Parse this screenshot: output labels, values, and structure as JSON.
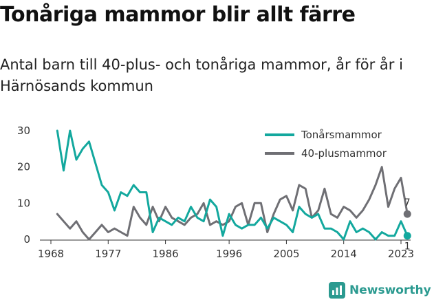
{
  "title": "Tonåriga mammor blir allt färre",
  "subtitle": "Antal barn till 40-plus- och tonåriga mammor, år för år i Härnösands kommun",
  "brand": "Newsworthy",
  "colors": {
    "teen": "#13a89e",
    "plus40": "#6f6f74",
    "axis": "#333333"
  },
  "chart_data": {
    "type": "line",
    "title": "Tonåriga mammor blir allt färre",
    "subtitle": "Antal barn till 40-plus- och tonåriga mammor, år för år i Härnösands kommun",
    "xlabel": "",
    "ylabel": "",
    "xlim": [
      1968,
      2023
    ],
    "ylim": [
      0,
      30
    ],
    "x_ticks": [
      "1968",
      "1977",
      "1986",
      "1996",
      "2005",
      "2014",
      "2023"
    ],
    "y_ticks": [
      "0",
      "10",
      "20",
      "30"
    ],
    "grid": false,
    "legend_position": "top-right",
    "x": [
      1969,
      1970,
      1971,
      1972,
      1973,
      1974,
      1975,
      1976,
      1977,
      1978,
      1979,
      1980,
      1981,
      1982,
      1983,
      1984,
      1985,
      1986,
      1987,
      1988,
      1989,
      1990,
      1991,
      1992,
      1993,
      1994,
      1995,
      1996,
      1997,
      1998,
      1999,
      2000,
      2001,
      2002,
      2003,
      2004,
      2005,
      2006,
      2007,
      2008,
      2009,
      2010,
      2011,
      2012,
      2013,
      2014,
      2015,
      2016,
      2017,
      2018,
      2019,
      2020,
      2021,
      2022,
      2023,
      2024
    ],
    "series": [
      {
        "name": "Tonårsmammor",
        "color": "#13a89e",
        "end_label": "1",
        "values": [
          30,
          19,
          30,
          22,
          25,
          27,
          21,
          15,
          13,
          8,
          13,
          12,
          15,
          13,
          13,
          2,
          6,
          5,
          4,
          6,
          5,
          9,
          6,
          5,
          11,
          9,
          1,
          7,
          4,
          3,
          4,
          4,
          6,
          3,
          6,
          5,
          4,
          2,
          9,
          7,
          6,
          7,
          3,
          3,
          2,
          0,
          5,
          2,
          3,
          2,
          0,
          2,
          1,
          1,
          5,
          1
        ]
      },
      {
        "name": "40-plusmammor",
        "color": "#6f6f74",
        "end_label": "7",
        "values": [
          7,
          5,
          3,
          5,
          2,
          0,
          2,
          4,
          2,
          3,
          2,
          1,
          9,
          6,
          4,
          9,
          5,
          9,
          6,
          5,
          4,
          6,
          7,
          10,
          4,
          5,
          4,
          5,
          9,
          10,
          4,
          10,
          10,
          2,
          7,
          11,
          12,
          8,
          15,
          14,
          6,
          8,
          14,
          7,
          6,
          9,
          8,
          6,
          8,
          11,
          15,
          20,
          9,
          14,
          17,
          7
        ]
      }
    ]
  }
}
